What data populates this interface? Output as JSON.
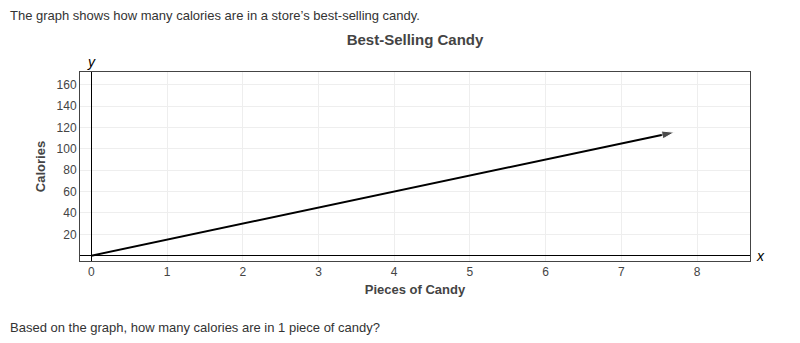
{
  "chart_data": {
    "type": "line",
    "title": "Best-Selling Candy",
    "subtitle": "The graph shows how many calories are in a store’s best-selling candy.",
    "xlabel": "Pieces of Candy",
    "ylabel": "Calories",
    "annotations": [
      "Based on the graph, how many calories are in 1 piece of candy?",
      "x",
      "y"
    ],
    "x": [
      0,
      7.5,
      7.7
    ],
    "values": [
      0,
      112.5,
      115.5
    ],
    "color": "#000000",
    "marker": "arrow",
    "xlim": [
      -0.15,
      8.7
    ],
    "ylim": [
      -5,
      172
    ],
    "xticks": [
      0,
      1,
      2,
      3,
      4,
      5,
      6,
      7,
      8
    ],
    "yticks": [
      20,
      40,
      60,
      80,
      100,
      120,
      140,
      160
    ],
    "grid": true
  }
}
